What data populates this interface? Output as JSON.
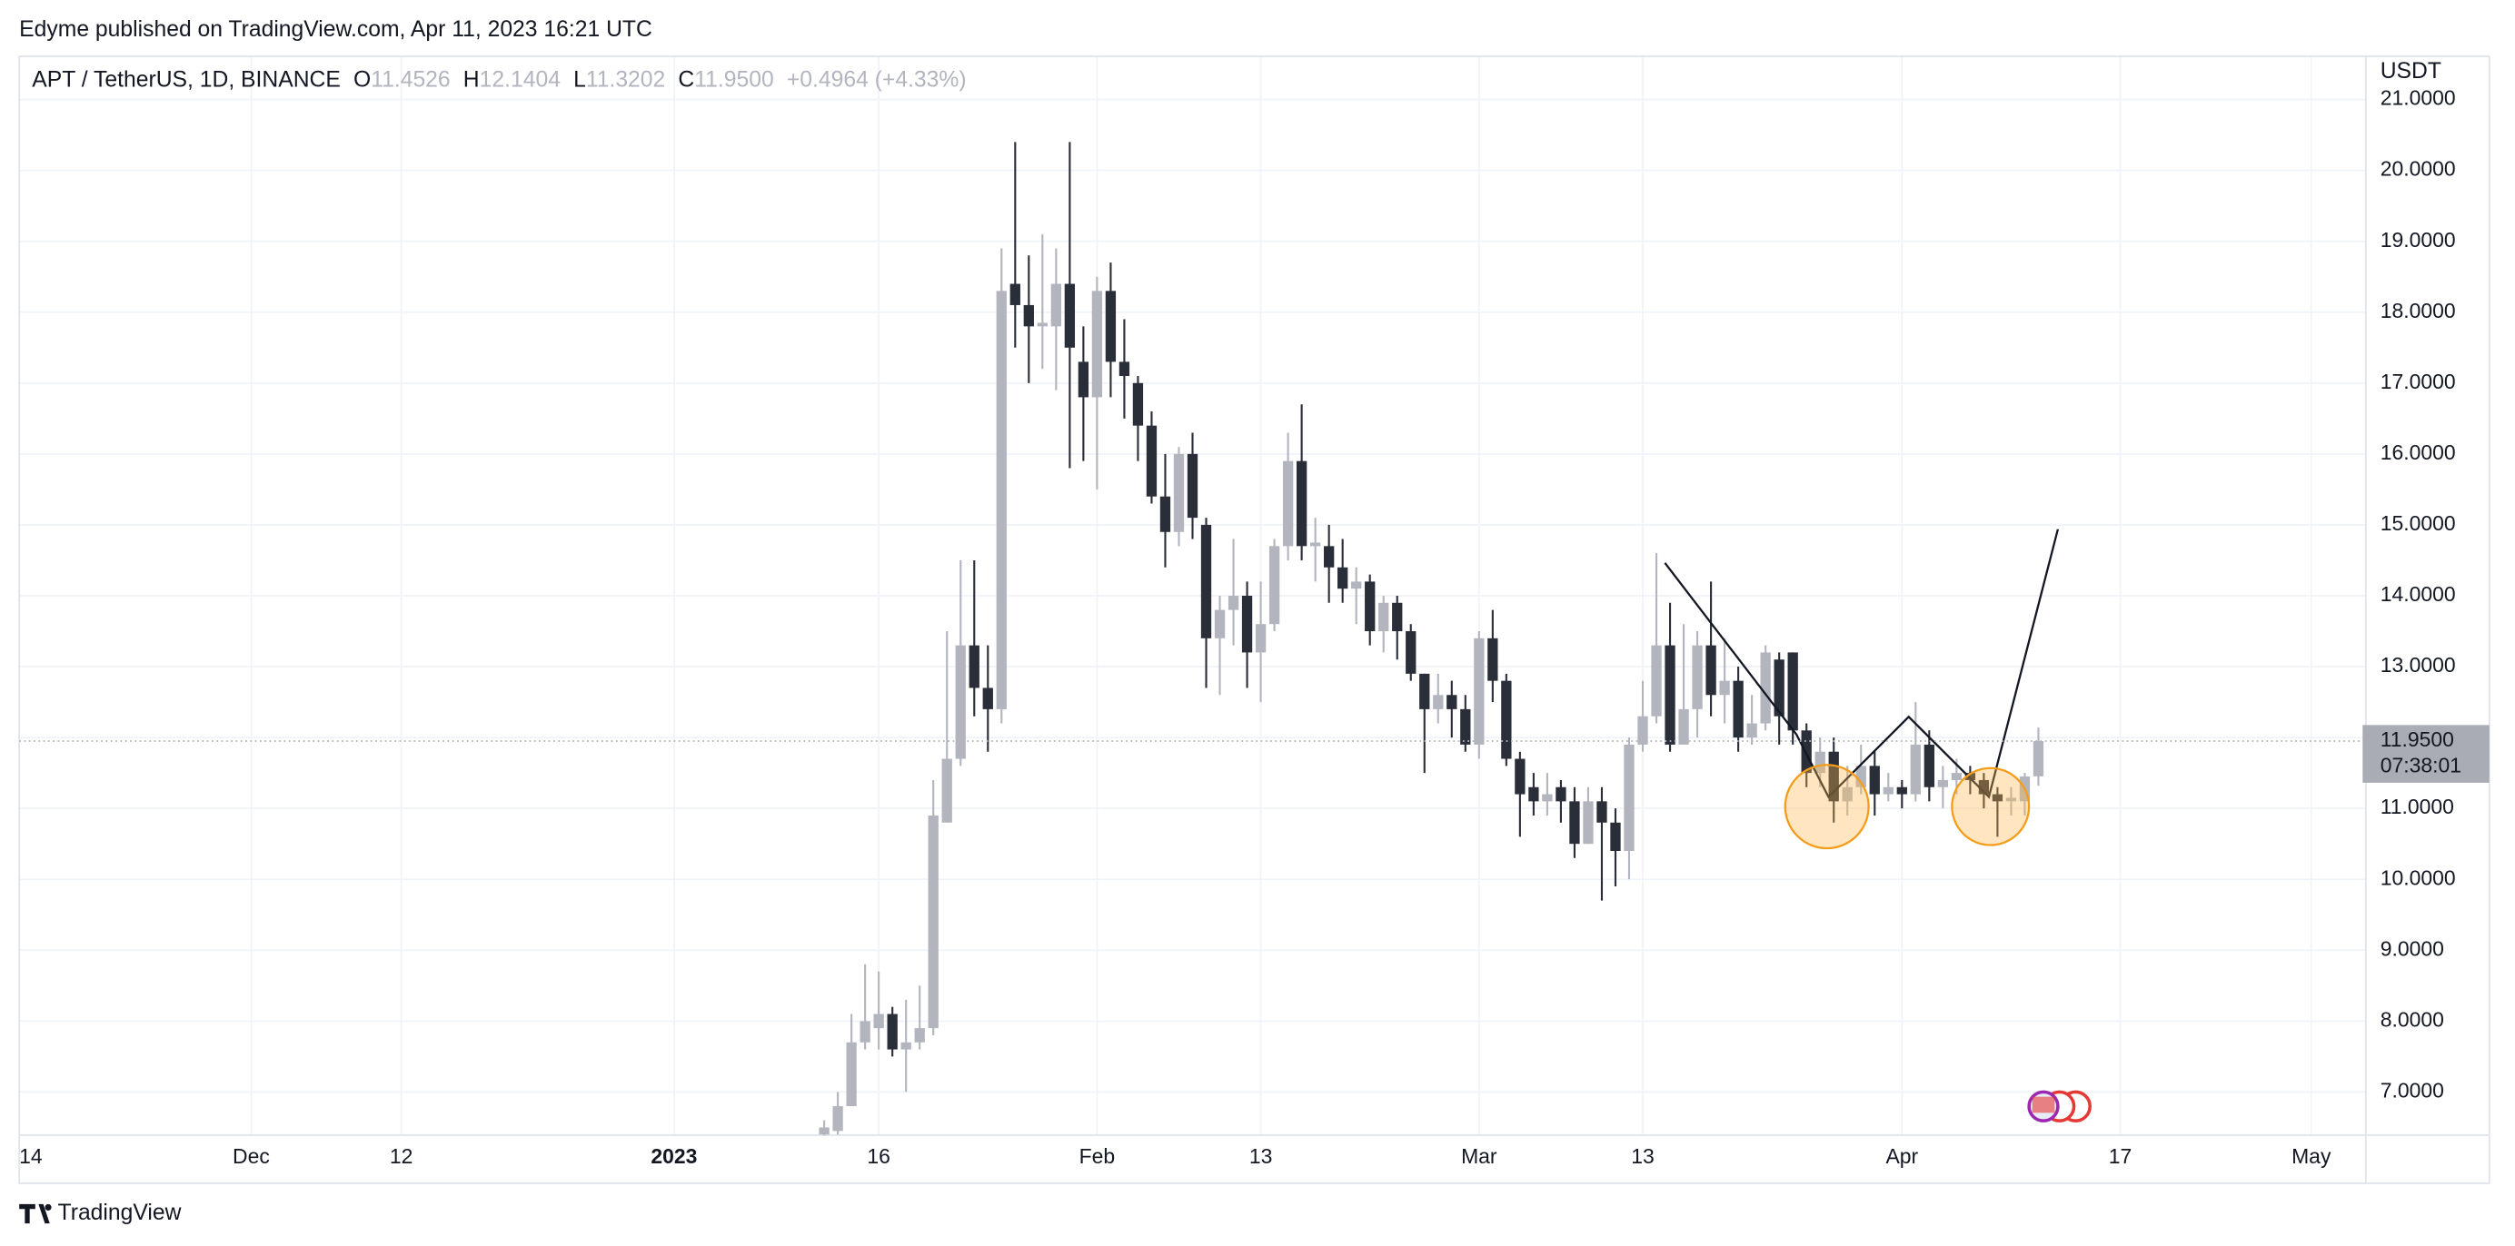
{
  "header": {
    "publisher": "Edyme published on TradingView.com, Apr 11, 2023 16:21 UTC",
    "brand": "TradingView"
  },
  "chart_data": {
    "type": "candlestick",
    "title": "APT / TetherUS, 1D, BINANCE",
    "ohlc_header": {
      "o_label": "O",
      "o": "11.4526",
      "h_label": "H",
      "h": "12.1404",
      "l_label": "L",
      "l": "11.3202",
      "c_label": "C",
      "c": "11.9500",
      "change": "+0.4964 (+4.33%)"
    },
    "y_unit": "USDT",
    "last_price": {
      "value": 11.95,
      "label": "11.9500",
      "countdown": "07:38:01"
    },
    "up_color": "#b2b5be",
    "down_color": "#2a2e39",
    "grid": true,
    "xlim": [
      "2022-11-14",
      "2023-05-05"
    ],
    "xticks": [
      {
        "value": "2022-11-14",
        "label": "14"
      },
      {
        "value": "2022-12-01",
        "label": "Dec"
      },
      {
        "value": "2022-12-12",
        "label": "12"
      },
      {
        "value": "2023-01-01",
        "label": "2023"
      },
      {
        "value": "2023-01-16",
        "label": "16"
      },
      {
        "value": "2023-02-01",
        "label": "Feb"
      },
      {
        "value": "2023-02-13",
        "label": "13"
      },
      {
        "value": "2023-03-01",
        "label": "Mar"
      },
      {
        "value": "2023-03-13",
        "label": "13"
      },
      {
        "value": "2023-04-01",
        "label": "Apr"
      },
      {
        "value": "2023-04-17",
        "label": "17"
      },
      {
        "value": "2023-05-01",
        "label": "May"
      }
    ],
    "ylim": [
      6.39,
      21.61
    ],
    "yticks": [
      {
        "value": 7,
        "label": "7.0000"
      },
      {
        "value": 8,
        "label": "8.0000"
      },
      {
        "value": 9,
        "label": "9.0000"
      },
      {
        "value": 10,
        "label": "10.0000"
      },
      {
        "value": 11,
        "label": "11.0000"
      },
      {
        "value": 12,
        "label": "12.0000"
      },
      {
        "value": 13,
        "label": "13.0000"
      },
      {
        "value": 14,
        "label": "14.0000"
      },
      {
        "value": 15,
        "label": "15.0000"
      },
      {
        "value": 16,
        "label": "16.0000"
      },
      {
        "value": 17,
        "label": "17.0000"
      },
      {
        "value": 18,
        "label": "18.0000"
      },
      {
        "value": 19,
        "label": "19.0000"
      },
      {
        "value": 20,
        "label": "20.0000"
      },
      {
        "value": 21,
        "label": "21.0000"
      }
    ],
    "x": [
      "2023-01-12",
      "2023-01-13",
      "2023-01-14",
      "2023-01-15",
      "2023-01-16",
      "2023-01-17",
      "2023-01-18",
      "2023-01-19",
      "2023-01-20",
      "2023-01-21",
      "2023-01-22",
      "2023-01-23",
      "2023-01-24",
      "2023-01-25",
      "2023-01-26",
      "2023-01-27",
      "2023-01-28",
      "2023-01-29",
      "2023-01-30",
      "2023-01-31",
      "2023-02-01",
      "2023-02-02",
      "2023-02-03",
      "2023-02-04",
      "2023-02-05",
      "2023-02-06",
      "2023-02-07",
      "2023-02-08",
      "2023-02-09",
      "2023-02-10",
      "2023-02-11",
      "2023-02-12",
      "2023-02-13",
      "2023-02-14",
      "2023-02-15",
      "2023-02-16",
      "2023-02-17",
      "2023-02-18",
      "2023-02-19",
      "2023-02-20",
      "2023-02-21",
      "2023-02-22",
      "2023-02-23",
      "2023-02-24",
      "2023-02-25",
      "2023-02-26",
      "2023-02-27",
      "2023-02-28",
      "2023-03-01",
      "2023-03-02",
      "2023-03-03",
      "2023-03-04",
      "2023-03-05",
      "2023-03-06",
      "2023-03-07",
      "2023-03-08",
      "2023-03-09",
      "2023-03-10",
      "2023-03-11",
      "2023-03-12",
      "2023-03-13",
      "2023-03-14",
      "2023-03-15",
      "2023-03-16",
      "2023-03-17",
      "2023-03-18",
      "2023-03-19",
      "2023-03-20",
      "2023-03-21",
      "2023-03-22",
      "2023-03-23",
      "2023-03-24",
      "2023-03-25",
      "2023-03-26",
      "2023-03-27",
      "2023-03-28",
      "2023-03-29",
      "2023-03-30",
      "2023-03-31",
      "2023-04-01",
      "2023-04-02",
      "2023-04-03",
      "2023-04-04",
      "2023-04-05",
      "2023-04-06",
      "2023-04-07",
      "2023-04-08",
      "2023-04-09",
      "2023-04-10",
      "2023-04-11"
    ],
    "open": [
      6.4,
      6.45,
      6.8,
      7.7,
      7.9,
      8.1,
      7.6,
      7.7,
      7.9,
      10.8,
      11.7,
      13.3,
      12.7,
      12.4,
      18.4,
      18.1,
      17.8,
      17.8,
      18.4,
      17.3,
      16.8,
      18.3,
      17.3,
      17.0,
      16.4,
      15.4,
      14.9,
      16.0,
      15.0,
      13.4,
      13.8,
      14.0,
      13.2,
      13.6,
      14.7,
      15.9,
      14.7,
      14.7,
      14.4,
      14.1,
      14.2,
      13.5,
      13.9,
      13.5,
      12.9,
      12.4,
      12.6,
      12.4,
      11.9,
      13.4,
      12.8,
      11.7,
      11.3,
      11.1,
      11.3,
      11.1,
      10.5,
      11.1,
      10.8,
      10.4,
      11.9,
      12.3,
      13.3,
      11.9,
      12.4,
      13.3,
      12.6,
      12.8,
      12.0,
      12.2,
      13.1,
      13.2,
      12.1,
      11.5,
      11.8,
      11.1,
      11.3,
      11.6,
      11.2,
      11.3,
      11.2,
      11.9,
      11.3,
      11.4,
      11.5,
      11.4,
      11.2,
      11.1,
      11.1,
      11.4526
    ],
    "high": [
      6.6,
      7.0,
      8.1,
      8.8,
      8.7,
      8.2,
      8.3,
      8.5,
      11.4,
      13.5,
      14.5,
      14.5,
      13.3,
      18.9,
      20.4,
      18.8,
      19.1,
      18.9,
      20.4,
      17.8,
      18.5,
      18.7,
      17.9,
      17.1,
      16.6,
      16.0,
      16.1,
      16.3,
      15.1,
      14.0,
      14.8,
      14.2,
      14.2,
      14.8,
      16.3,
      16.7,
      15.1,
      15.0,
      14.8,
      14.4,
      14.3,
      14.0,
      14.0,
      13.6,
      12.9,
      12.9,
      12.8,
      12.6,
      13.5,
      13.8,
      12.9,
      11.8,
      11.5,
      11.5,
      11.4,
      11.3,
      11.3,
      11.3,
      11.0,
      12.0,
      12.8,
      14.6,
      13.9,
      13.6,
      13.5,
      14.2,
      13.4,
      13.0,
      12.6,
      13.3,
      13.2,
      13.2,
      12.2,
      12.0,
      12.0,
      11.6,
      11.9,
      11.8,
      11.5,
      11.4,
      12.5,
      12.1,
      11.6,
      11.7,
      11.6,
      11.5,
      11.3,
      11.3,
      11.5,
      12.1404
    ],
    "low": [
      6.3,
      6.4,
      6.8,
      7.6,
      7.6,
      7.5,
      7.0,
      7.6,
      7.8,
      10.9,
      11.6,
      12.3,
      11.8,
      12.2,
      17.5,
      17.0,
      17.2,
      16.9,
      15.8,
      15.9,
      15.5,
      16.8,
      16.5,
      15.9,
      15.3,
      14.4,
      14.7,
      14.8,
      12.7,
      12.6,
      13.3,
      12.7,
      12.5,
      13.5,
      14.5,
      14.5,
      14.2,
      13.9,
      13.9,
      13.6,
      13.3,
      13.2,
      13.1,
      12.8,
      11.5,
      12.2,
      12.0,
      11.8,
      11.7,
      12.5,
      11.6,
      10.6,
      10.9,
      10.9,
      10.8,
      10.3,
      10.5,
      9.7,
      9.9,
      10.0,
      11.8,
      12.2,
      11.8,
      11.9,
      12.0,
      12.3,
      12.2,
      11.8,
      11.9,
      12.1,
      11.9,
      11.9,
      11.3,
      11.3,
      10.8,
      10.9,
      11.2,
      10.9,
      11.1,
      11.0,
      11.1,
      11.1,
      11.0,
      11.2,
      11.2,
      11.0,
      10.6,
      10.9,
      10.9,
      11.3202
    ],
    "close": [
      6.5,
      6.8,
      7.7,
      8.0,
      8.1,
      7.6,
      7.7,
      7.9,
      10.9,
      11.7,
      13.3,
      12.7,
      12.4,
      18.3,
      18.1,
      17.8,
      17.85,
      18.4,
      17.5,
      16.8,
      18.3,
      17.3,
      17.1,
      16.4,
      15.4,
      14.9,
      16.0,
      15.1,
      13.4,
      13.8,
      14.0,
      13.2,
      13.6,
      14.7,
      15.9,
      14.7,
      14.75,
      14.4,
      14.1,
      14.2,
      13.5,
      13.9,
      13.5,
      12.9,
      12.4,
      12.6,
      12.4,
      11.9,
      13.4,
      12.8,
      11.7,
      11.2,
      11.1,
      11.2,
      11.1,
      10.5,
      11.1,
      10.8,
      10.4,
      11.9,
      12.3,
      13.3,
      11.9,
      12.4,
      13.3,
      12.6,
      12.8,
      12.0,
      12.2,
      13.2,
      12.3,
      12.1,
      11.5,
      11.8,
      11.1,
      11.3,
      11.6,
      11.2,
      11.3,
      11.2,
      11.9,
      11.3,
      11.4,
      11.5,
      11.4,
      11.2,
      11.1,
      11.15,
      11.45,
      11.95
    ]
  }
}
